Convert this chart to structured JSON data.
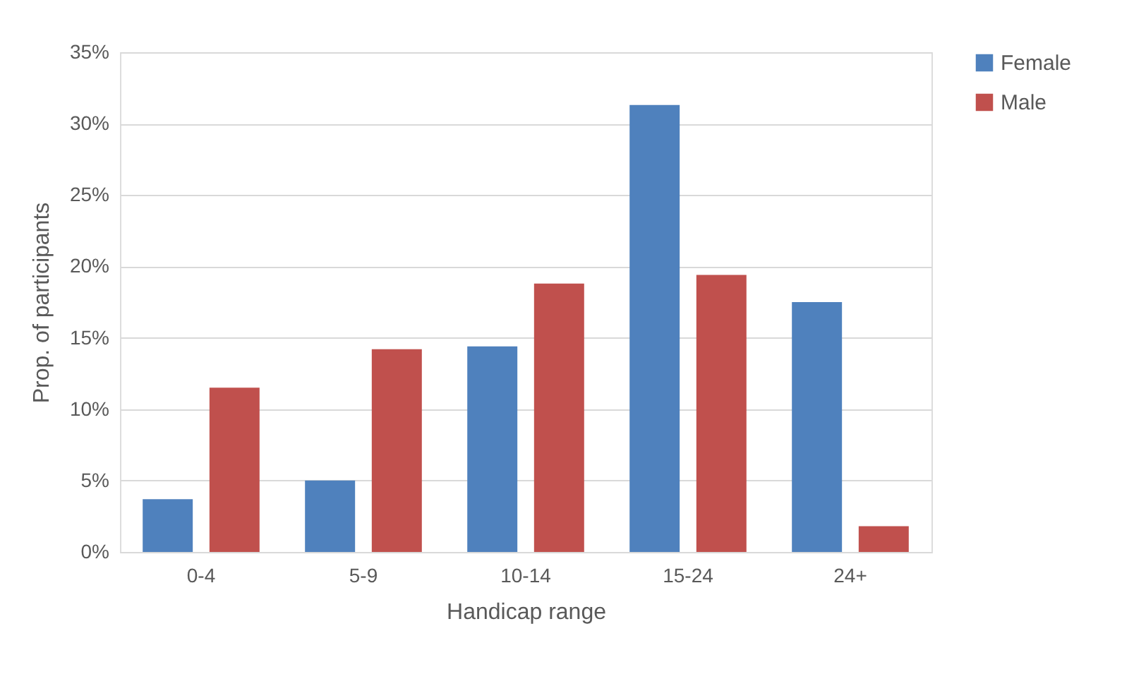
{
  "chart_data": {
    "type": "bar",
    "xlabel": "Handicap range",
    "ylabel": "Prop. of participants",
    "categories": [
      "0-4",
      "5-9",
      "10-14",
      "15-24",
      "24+"
    ],
    "series": [
      {
        "name": "Female",
        "color": "#4f81bd",
        "values": [
          3.7,
          5.0,
          14.4,
          31.3,
          17.5
        ]
      },
      {
        "name": "Male",
        "color": "#c0504d",
        "values": [
          11.5,
          14.2,
          18.8,
          19.4,
          1.8
        ]
      }
    ],
    "ylim": [
      0,
      35
    ],
    "yticks": [
      {
        "value": 0,
        "label": "0%"
      },
      {
        "value": 5,
        "label": "5%"
      },
      {
        "value": 10,
        "label": "10%"
      },
      {
        "value": 15,
        "label": "15%"
      },
      {
        "value": 20,
        "label": "20%"
      },
      {
        "value": 25,
        "label": "25%"
      },
      {
        "value": 30,
        "label": "30%"
      },
      {
        "value": 35,
        "label": "35%"
      }
    ],
    "grid": "y",
    "legend": "right"
  }
}
